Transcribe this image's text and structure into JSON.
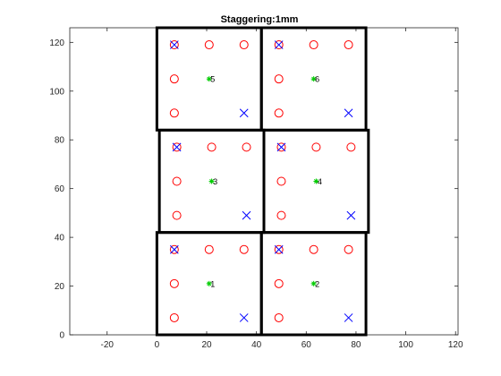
{
  "chart_data": {
    "type": "scatter",
    "title": "Staggering:1mm",
    "xlim": [
      -35,
      121
    ],
    "ylim": [
      0,
      126
    ],
    "x_ticks": [
      -20,
      0,
      20,
      40,
      60,
      80,
      100,
      120
    ],
    "y_ticks": [
      0,
      20,
      40,
      60,
      80,
      100,
      120
    ],
    "grid": false,
    "colors": {
      "circle": "#ff0000",
      "cross": "#0000ff",
      "star": "#00cc00",
      "box": "#000000"
    },
    "cells": [
      {
        "label": "1",
        "x0": 0,
        "y0": 0,
        "x1": 42,
        "y1": 42,
        "center": [
          21,
          21
        ],
        "circles": [
          [
            7,
            35
          ],
          [
            21,
            35
          ],
          [
            35,
            35
          ],
          [
            7,
            21
          ],
          [
            7,
            7
          ]
        ],
        "crosses": [
          [
            7,
            35
          ],
          [
            35,
            7
          ]
        ]
      },
      {
        "label": "2",
        "x0": 42,
        "y0": 0,
        "x1": 84,
        "y1": 42,
        "center": [
          63,
          21
        ],
        "circles": [
          [
            49,
            35
          ],
          [
            63,
            35
          ],
          [
            77,
            35
          ],
          [
            49,
            21
          ],
          [
            49,
            7
          ]
        ],
        "crosses": [
          [
            49,
            35
          ],
          [
            77,
            7
          ]
        ]
      },
      {
        "label": "3",
        "x0": 1,
        "y0": 42,
        "x1": 43,
        "y1": 84,
        "center": [
          22,
          63
        ],
        "circles": [
          [
            8,
            77
          ],
          [
            22,
            77
          ],
          [
            36,
            77
          ],
          [
            8,
            63
          ],
          [
            8,
            49
          ]
        ],
        "crosses": [
          [
            8,
            77
          ],
          [
            36,
            49
          ]
        ]
      },
      {
        "label": "4",
        "x0": 43,
        "y0": 42,
        "x1": 85,
        "y1": 84,
        "center": [
          64,
          63
        ],
        "circles": [
          [
            50,
            77
          ],
          [
            64,
            77
          ],
          [
            78,
            77
          ],
          [
            50,
            63
          ],
          [
            50,
            49
          ]
        ],
        "crosses": [
          [
            50,
            77
          ],
          [
            78,
            49
          ]
        ]
      },
      {
        "label": "5",
        "x0": 0,
        "y0": 84,
        "x1": 42,
        "y1": 126,
        "center": [
          21,
          105
        ],
        "circles": [
          [
            7,
            119
          ],
          [
            21,
            119
          ],
          [
            35,
            119
          ],
          [
            7,
            105
          ],
          [
            7,
            91
          ]
        ],
        "crosses": [
          [
            7,
            119
          ],
          [
            35,
            91
          ]
        ]
      },
      {
        "label": "6",
        "x0": 42,
        "y0": 84,
        "x1": 84,
        "y1": 126,
        "center": [
          63,
          105
        ],
        "circles": [
          [
            49,
            119
          ],
          [
            63,
            119
          ],
          [
            77,
            119
          ],
          [
            49,
            105
          ],
          [
            49,
            91
          ]
        ],
        "crosses": [
          [
            49,
            119
          ],
          [
            77,
            91
          ]
        ]
      }
    ]
  }
}
